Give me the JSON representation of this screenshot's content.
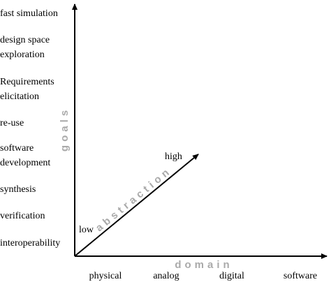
{
  "axes": {
    "vertical": "goals",
    "horizontal": "domain",
    "diagonal": "abstraction"
  },
  "abstraction_levels": {
    "low": "low",
    "high": "high"
  },
  "goals": [
    {
      "lines": [
        "fast simulation"
      ]
    },
    {
      "lines": [
        "design space",
        "exploration"
      ]
    },
    {
      "lines": [
        "Requirements",
        "elicitation"
      ]
    },
    {
      "lines": [
        "re-use"
      ]
    },
    {
      "lines": [
        "software",
        "development"
      ]
    },
    {
      "lines": [
        "synthesis"
      ]
    },
    {
      "lines": [
        "verification"
      ]
    },
    {
      "lines": [
        "interoperability"
      ]
    }
  ],
  "domains": [
    "physical",
    "analog",
    "digital",
    "software"
  ]
}
